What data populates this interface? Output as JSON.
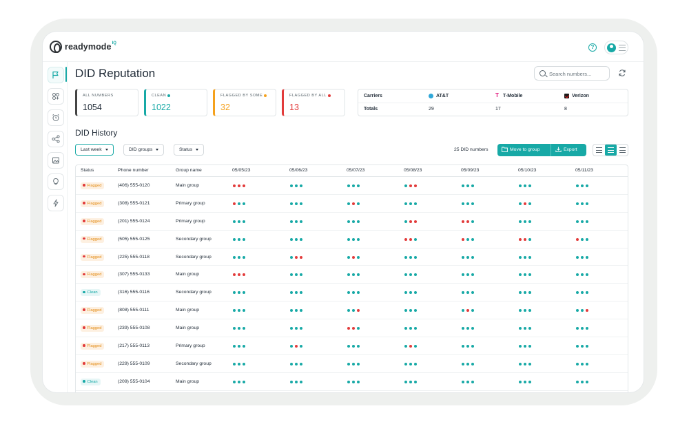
{
  "app": {
    "logo_text": "readymode",
    "logo_sup": "IQ"
  },
  "page": {
    "title": "DID Reputation"
  },
  "search": {
    "placeholder": "Search numbers..."
  },
  "sidebar": {
    "icons": [
      "flag-icon",
      "group-icon",
      "alarm-icon",
      "share-icon",
      "image-icon",
      "lightbulb-icon",
      "lightning-icon"
    ]
  },
  "stats": [
    {
      "label": "ALL NUMBERS",
      "value": "1054",
      "color": "#444444"
    },
    {
      "label": "CLEAN",
      "value": "1022",
      "color": "#17a9a6"
    },
    {
      "label": "FLAGGED BY SOME",
      "value": "32",
      "color": "#f5a11c"
    },
    {
      "label": "FLAGGED BY ALL",
      "value": "13",
      "color": "#e23b3b"
    }
  ],
  "carriers": {
    "header_label": "Carriers",
    "totals_label": "Totals",
    "items": [
      {
        "name": "AT&T",
        "total": "29"
      },
      {
        "name": "T-Mobile",
        "total": "17"
      },
      {
        "name": "Verizon",
        "total": "8"
      }
    ]
  },
  "history": {
    "title": "DID History",
    "filters": [
      "Last week",
      "DID groups",
      "Status"
    ],
    "count_text": "25 DID numbers",
    "move_label": "Move to group",
    "export_label": "Export"
  },
  "table": {
    "headers": {
      "status": "Status",
      "phone": "Phone number",
      "group": "Group name"
    },
    "dates": [
      "05/05/23",
      "05/06/23",
      "05/07/23",
      "05/08/23",
      "05/09/23",
      "05/10/23",
      "05/11/23"
    ],
    "rows": [
      {
        "status": "Flagged",
        "phone": "(406) 555-0120",
        "group": "Main group",
        "days": [
          "rrr",
          "ggg",
          "ggg",
          "grr",
          "ggg",
          "ggg",
          "ggg"
        ]
      },
      {
        "status": "Flagged",
        "phone": "(308) 555-0121",
        "group": "Primary group",
        "days": [
          "rgg",
          "ggg",
          "grg",
          "ggg",
          "ggg",
          "grg",
          "ggg"
        ]
      },
      {
        "status": "Flagged",
        "phone": "(201) 555-0124",
        "group": "Primary group",
        "days": [
          "ggg",
          "ggg",
          "ggg",
          "grr",
          "rrg",
          "ggg",
          "ggg"
        ]
      },
      {
        "status": "Flagged",
        "phone": "(505) 555-0125",
        "group": "Secondary group",
        "days": [
          "ggg",
          "ggg",
          "ggg",
          "rrg",
          "rgg",
          "rrg",
          "rgg"
        ]
      },
      {
        "status": "Flagged",
        "phone": "(225) 555-0118",
        "group": "Secondary group",
        "days": [
          "ggg",
          "grr",
          "grg",
          "ggg",
          "ggg",
          "ggg",
          "ggg"
        ]
      },
      {
        "status": "Flagged",
        "phone": "(307) 555-0133",
        "group": "Main group",
        "days": [
          "rrr",
          "ggg",
          "ggg",
          "ggg",
          "ggg",
          "ggg",
          "ggg"
        ]
      },
      {
        "status": "Clean",
        "phone": "(316) 555-0116",
        "group": "Secondary group",
        "days": [
          "ggg",
          "ggg",
          "ggg",
          "ggg",
          "ggg",
          "ggg",
          "ggg"
        ]
      },
      {
        "status": "Flagged",
        "phone": "(808) 555-0111",
        "group": "Main group",
        "days": [
          "ggg",
          "ggg",
          "ggr",
          "ggg",
          "grg",
          "ggg",
          "ggr"
        ]
      },
      {
        "status": "Flagged",
        "phone": "(239) 555-0108",
        "group": "Main group",
        "days": [
          "ggg",
          "ggg",
          "rrg",
          "ggg",
          "ggg",
          "ggg",
          "ggg"
        ]
      },
      {
        "status": "Flagged",
        "phone": "(217) 555-0113",
        "group": "Primary group",
        "days": [
          "ggg",
          "grg",
          "ggg",
          "grg",
          "ggg",
          "ggg",
          "ggg"
        ]
      },
      {
        "status": "Flagged",
        "phone": "(229) 555-0109",
        "group": "Secondary group",
        "days": [
          "ggg",
          "ggg",
          "ggg",
          "ggg",
          "ggg",
          "ggg",
          "ggg"
        ]
      },
      {
        "status": "Clean",
        "phone": "(209) 555-0104",
        "group": "Main group",
        "days": [
          "ggg",
          "ggg",
          "ggg",
          "ggg",
          "ggg",
          "ggg",
          "ggg"
        ]
      }
    ]
  },
  "colors": {
    "accent": "#17a9a6",
    "flagged": "#f5a11c",
    "red": "#e23b3b"
  }
}
